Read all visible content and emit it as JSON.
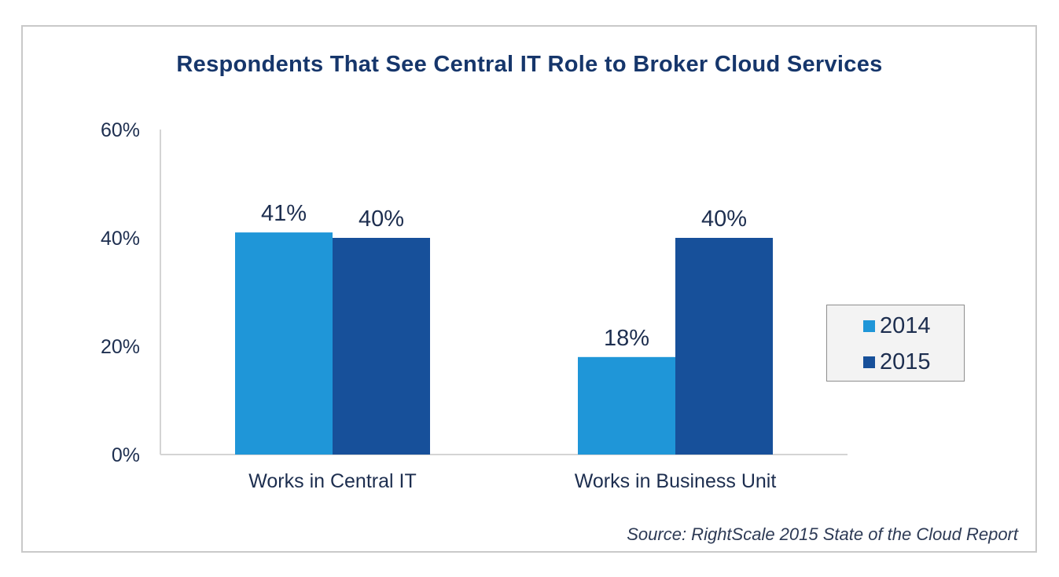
{
  "chart_data": {
    "type": "bar",
    "title": "Respondents That See Central IT Role to Broker Cloud Services",
    "categories": [
      "Works in Central IT",
      "Works in Business Unit"
    ],
    "series": [
      {
        "name": "2014",
        "values": [
          41,
          18
        ],
        "labels": [
          "41%",
          "18%"
        ],
        "color": "#1f96d8"
      },
      {
        "name": "2015",
        "values": [
          40,
          40
        ],
        "labels": [
          "40%",
          "40%"
        ],
        "color": "#17509a"
      }
    ],
    "yticks": [
      0,
      20,
      40,
      60
    ],
    "ytick_labels": [
      "0%",
      "20%",
      "40%",
      "60%"
    ],
    "ylim": [
      0,
      60
    ],
    "xlabel": "",
    "ylabel": "",
    "grid": false,
    "legend": "right",
    "source": "Source: RightScale 2015 State of the Cloud Report"
  }
}
